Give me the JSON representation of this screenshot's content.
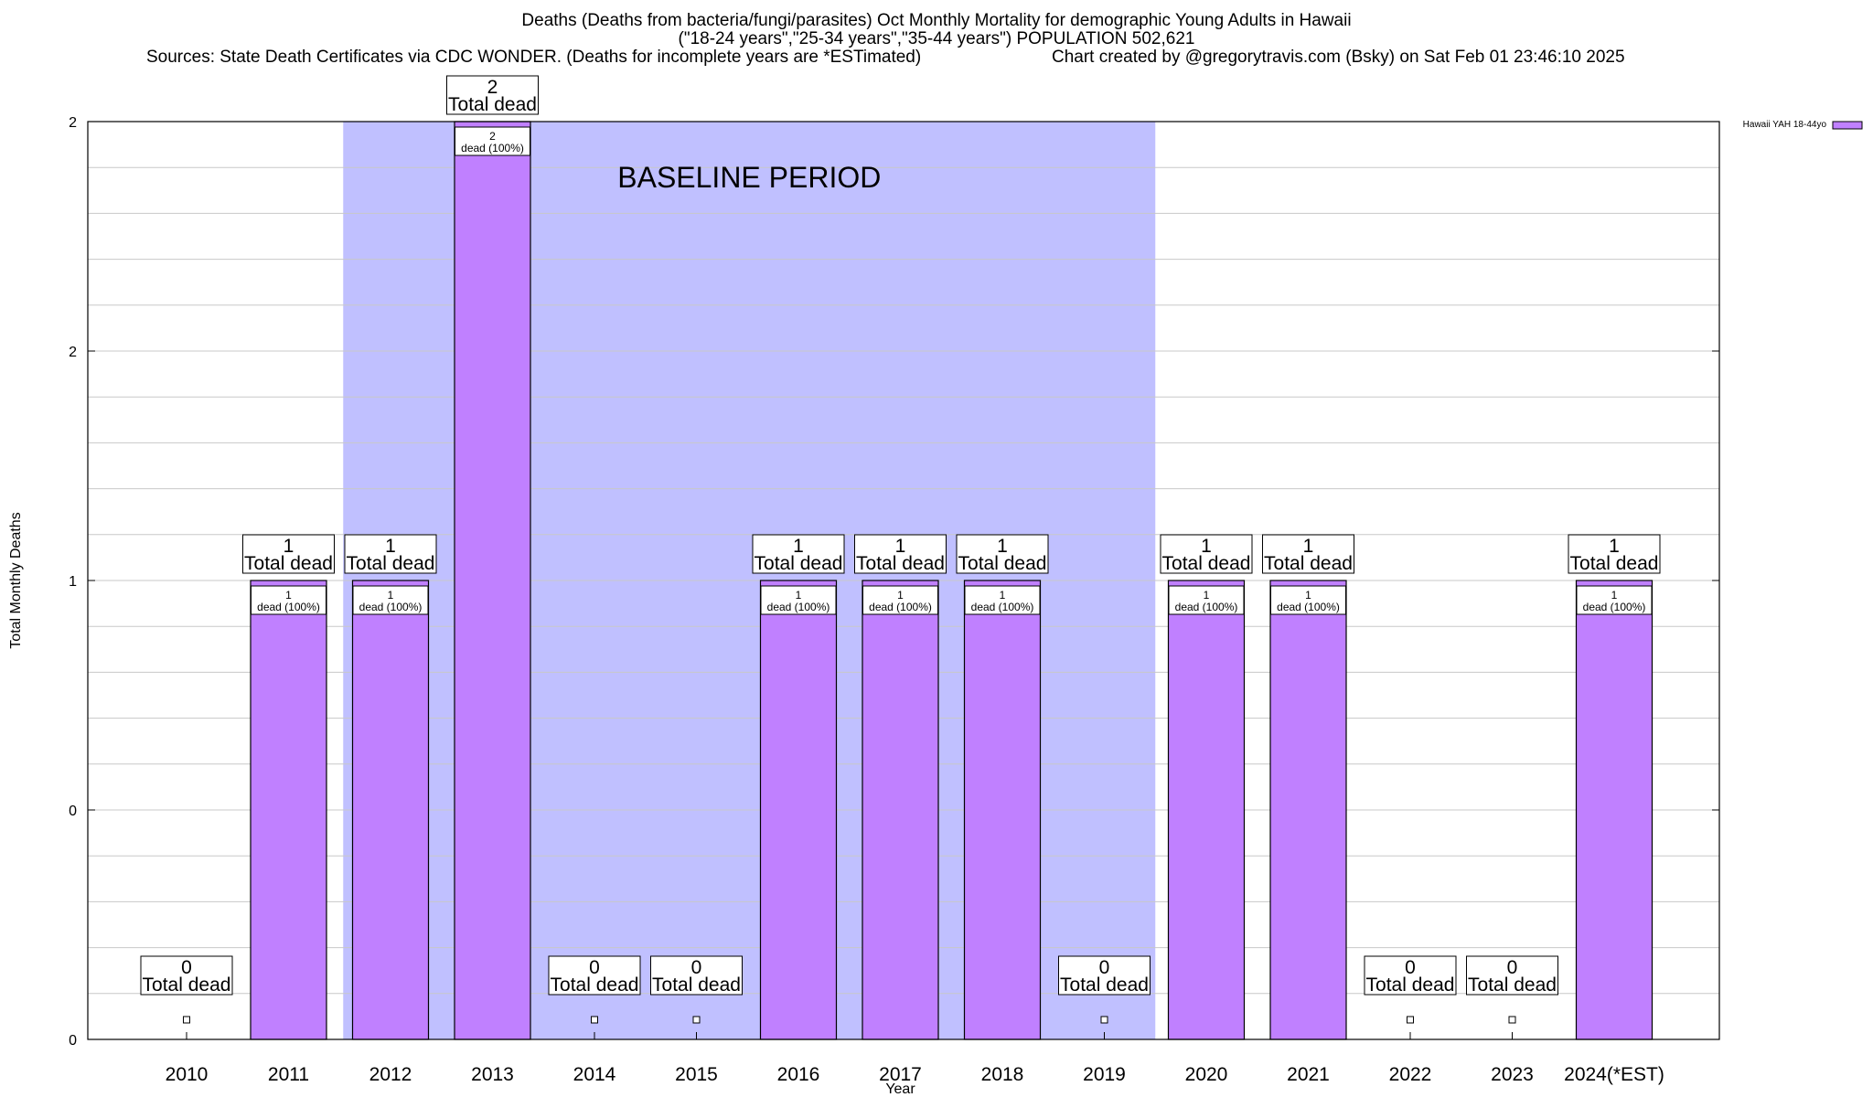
{
  "chart_data": {
    "type": "bar",
    "title_line1": "Deaths (Deaths from bacteria/fungi/parasites) Oct Monthly Mortality for demographic Young Adults in Hawaii",
    "title_line2": "(\"18-24 years\",\"25-34 years\",\"35-44 years\") POPULATION 502,621",
    "sources": "Sources: State Death Certificates via CDC WONDER. (Deaths for incomplete years are *ESTimated)",
    "credit": "Chart created by @gregorytravis.com (Bsky) on Sat Feb 01 23:46:10 2025",
    "xlabel": "Year",
    "ylabel": "Total Monthly Deaths",
    "categories": [
      "2010",
      "2011",
      "2012",
      "2013",
      "2014",
      "2015",
      "2016",
      "2017",
      "2018",
      "2019",
      "2020",
      "2021",
      "2022",
      "2023",
      "2024(*EST)"
    ],
    "series": [
      {
        "name": "Hawaii YAH 18-44yo",
        "color": "#c080ff",
        "values": [
          0,
          1,
          1,
          2,
          0,
          0,
          1,
          1,
          1,
          0,
          1,
          1,
          0,
          0,
          1
        ]
      }
    ],
    "total_label_suffix": "Total dead",
    "inner_label_suffix": "dead (100%)",
    "ylim": [
      0,
      2
    ],
    "y_tick_labels": [
      "0",
      "0",
      "1",
      "2",
      "2"
    ],
    "baseline": {
      "label": "BASELINE PERIOD",
      "from": "2012",
      "to": "2019",
      "color": "#c0c0ff"
    },
    "grid": true,
    "legend_position": "top-right"
  }
}
